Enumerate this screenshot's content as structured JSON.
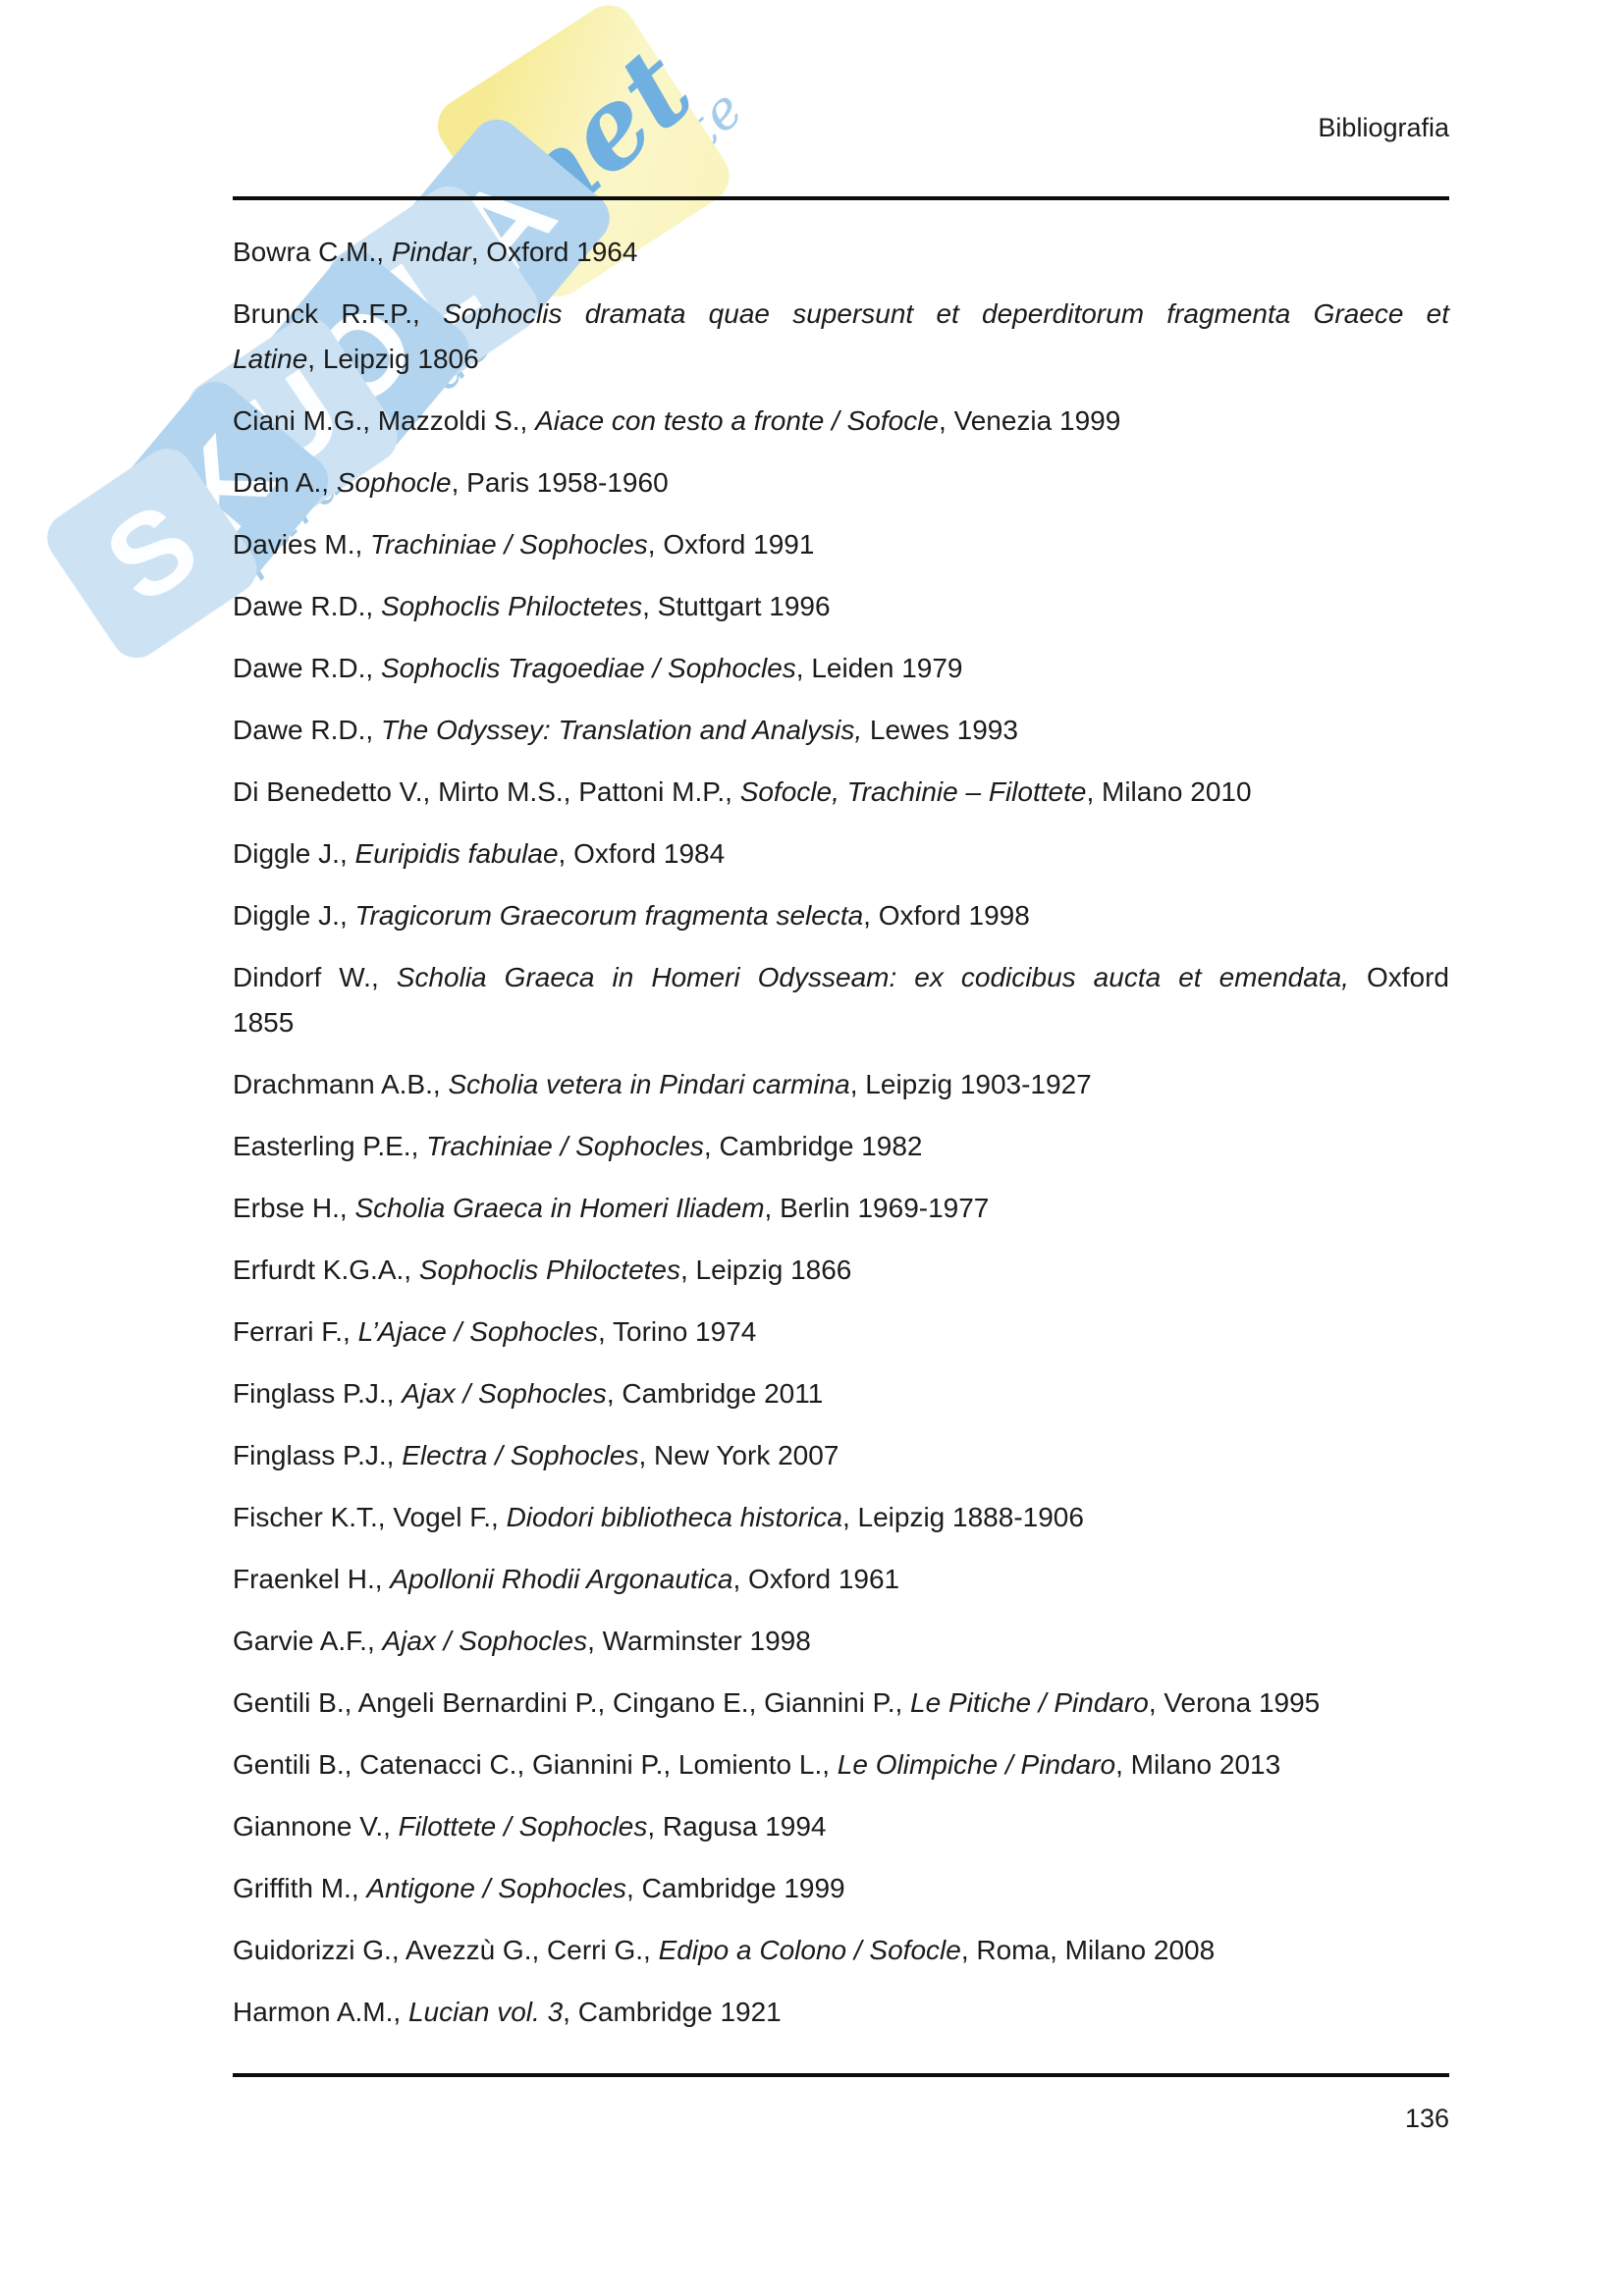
{
  "header": {
    "title": "Bibliografia"
  },
  "footer": {
    "page_number": "136"
  },
  "watermark": {
    "letters": [
      "S",
      "K",
      "U",
      "O",
      "L",
      "A"
    ],
    "suffix": ".net",
    "tagline": "il paradiso dello studente",
    "colors": {
      "tile_blue_light": "#cde2f3",
      "tile_blue": "#b3d4ee",
      "tile_yellow": "#f8f0a8",
      "script_blue": "#6fb0e0",
      "tagline_blue": "#a3cce9"
    }
  },
  "entries": [
    {
      "lines": [
        {
          "justify": false,
          "segments": [
            {
              "text": "Bowra C.M., ",
              "italic": false
            },
            {
              "text": "Pindar",
              "italic": true
            },
            {
              "text": ", Oxford 1964",
              "italic": false
            }
          ]
        }
      ]
    },
    {
      "lines": [
        {
          "justify": true,
          "segments": [
            {
              "text": "Brunck R.F.P., ",
              "italic": false
            },
            {
              "text": "Sophoclis dramata quae supersunt et deperditorum fragmenta Graece et",
              "italic": true
            }
          ]
        },
        {
          "justify": false,
          "segments": [
            {
              "text": "Latine",
              "italic": true
            },
            {
              "text": ", Leipzig 1806",
              "italic": false
            }
          ]
        }
      ]
    },
    {
      "lines": [
        {
          "justify": false,
          "segments": [
            {
              "text": "Ciani M.G., Mazzoldi S., ",
              "italic": false
            },
            {
              "text": "Aiace con testo a fronte / Sofocle",
              "italic": true
            },
            {
              "text": ", Venezia 1999",
              "italic": false
            }
          ]
        }
      ]
    },
    {
      "lines": [
        {
          "justify": false,
          "segments": [
            {
              "text": "Dain A., ",
              "italic": false
            },
            {
              "text": "Sophocle",
              "italic": true
            },
            {
              "text": ", Paris 1958-1960",
              "italic": false
            }
          ]
        }
      ]
    },
    {
      "lines": [
        {
          "justify": false,
          "segments": [
            {
              "text": "Davies M., ",
              "italic": false
            },
            {
              "text": "Trachiniae / Sophocles",
              "italic": true
            },
            {
              "text": ", Oxford 1991",
              "italic": false
            }
          ]
        }
      ]
    },
    {
      "lines": [
        {
          "justify": false,
          "segments": [
            {
              "text": "Dawe R.D., ",
              "italic": false
            },
            {
              "text": "Sophoclis Philoctetes",
              "italic": true
            },
            {
              "text": ", Stuttgart 1996",
              "italic": false
            }
          ]
        }
      ]
    },
    {
      "lines": [
        {
          "justify": false,
          "segments": [
            {
              "text": "Dawe R.D., ",
              "italic": false
            },
            {
              "text": "Sophoclis Tragoediae / Sophocles",
              "italic": true
            },
            {
              "text": ", Leiden 1979",
              "italic": false
            }
          ]
        }
      ]
    },
    {
      "lines": [
        {
          "justify": false,
          "segments": [
            {
              "text": "Dawe R.D., ",
              "italic": false
            },
            {
              "text": "The Odyssey: Translation and Analysis,",
              "italic": true
            },
            {
              "text": " Lewes 1993",
              "italic": false
            }
          ]
        }
      ]
    },
    {
      "lines": [
        {
          "justify": false,
          "segments": [
            {
              "text": "Di Benedetto V., Mirto M.S., Pattoni M.P., ",
              "italic": false
            },
            {
              "text": "Sofocle, Trachinie – Filottete",
              "italic": true
            },
            {
              "text": ", Milano 2010",
              "italic": false
            }
          ]
        }
      ]
    },
    {
      "lines": [
        {
          "justify": false,
          "segments": [
            {
              "text": "Diggle J., ",
              "italic": false
            },
            {
              "text": "Euripidis fabulae",
              "italic": true
            },
            {
              "text": ", Oxford 1984",
              "italic": false
            }
          ]
        }
      ]
    },
    {
      "lines": [
        {
          "justify": false,
          "segments": [
            {
              "text": "Diggle J., ",
              "italic": false
            },
            {
              "text": "Tragicorum Graecorum fragmenta selecta",
              "italic": true
            },
            {
              "text": ", Oxford 1998",
              "italic": false
            }
          ]
        }
      ]
    },
    {
      "lines": [
        {
          "justify": true,
          "segments": [
            {
              "text": "Dindorf W., ",
              "italic": false
            },
            {
              "text": "Scholia Graeca in Homeri Odysseam: ex codicibus aucta et emendata,",
              "italic": true
            },
            {
              "text": " Oxford",
              "italic": false
            }
          ]
        },
        {
          "justify": false,
          "segments": [
            {
              "text": "1855",
              "italic": false
            }
          ]
        }
      ]
    },
    {
      "lines": [
        {
          "justify": false,
          "segments": [
            {
              "text": "Drachmann A.B., ",
              "italic": false
            },
            {
              "text": "Scholia vetera in Pindari carmina",
              "italic": true
            },
            {
              "text": ", Leipzig 1903-1927",
              "italic": false
            }
          ]
        }
      ]
    },
    {
      "lines": [
        {
          "justify": false,
          "segments": [
            {
              "text": "Easterling P.E., ",
              "italic": false
            },
            {
              "text": "Trachiniae / Sophocles",
              "italic": true
            },
            {
              "text": ", Cambridge 1982",
              "italic": false
            }
          ]
        }
      ]
    },
    {
      "lines": [
        {
          "justify": false,
          "segments": [
            {
              "text": "Erbse H., ",
              "italic": false
            },
            {
              "text": "Scholia Graeca in Homeri Iliadem",
              "italic": true
            },
            {
              "text": ", Berlin 1969-1977",
              "italic": false
            }
          ]
        }
      ]
    },
    {
      "lines": [
        {
          "justify": false,
          "segments": [
            {
              "text": "Erfurdt K.G.A., ",
              "italic": false
            },
            {
              "text": "Sophoclis Philoctetes",
              "italic": true
            },
            {
              "text": ", Leipzig 1866",
              "italic": false
            }
          ]
        }
      ]
    },
    {
      "lines": [
        {
          "justify": false,
          "segments": [
            {
              "text": "Ferrari F., ",
              "italic": false
            },
            {
              "text": "L’Ajace / Sophocles",
              "italic": true
            },
            {
              "text": ", Torino 1974",
              "italic": false
            }
          ]
        }
      ]
    },
    {
      "lines": [
        {
          "justify": false,
          "segments": [
            {
              "text": "Finglass P.J., ",
              "italic": false
            },
            {
              "text": "Ajax / Sophocles",
              "italic": true
            },
            {
              "text": ", Cambridge 2011",
              "italic": false
            }
          ]
        }
      ]
    },
    {
      "lines": [
        {
          "justify": false,
          "segments": [
            {
              "text": "Finglass P.J., ",
              "italic": false
            },
            {
              "text": "Electra / Sophocles",
              "italic": true
            },
            {
              "text": ", New York 2007",
              "italic": false
            }
          ]
        }
      ]
    },
    {
      "lines": [
        {
          "justify": false,
          "segments": [
            {
              "text": "Fischer K.T., Vogel F., ",
              "italic": false
            },
            {
              "text": "Diodori bibliotheca historica",
              "italic": true
            },
            {
              "text": ", Leipzig 1888-1906",
              "italic": false
            }
          ]
        }
      ]
    },
    {
      "lines": [
        {
          "justify": false,
          "segments": [
            {
              "text": "Fraenkel H., ",
              "italic": false
            },
            {
              "text": "Apollonii Rhodii Argonautica",
              "italic": true
            },
            {
              "text": ", Oxford 1961",
              "italic": false
            }
          ]
        }
      ]
    },
    {
      "lines": [
        {
          "justify": false,
          "segments": [
            {
              "text": "Garvie A.F., ",
              "italic": false
            },
            {
              "text": "Ajax / Sophocles",
              "italic": true
            },
            {
              "text": ", Warminster 1998",
              "italic": false
            }
          ]
        }
      ]
    },
    {
      "lines": [
        {
          "justify": false,
          "segments": [
            {
              "text": "Gentili B., Angeli Bernardini P., Cingano E., Giannini P., ",
              "italic": false
            },
            {
              "text": "Le Pitiche / Pindaro",
              "italic": true
            },
            {
              "text": ", Verona 1995",
              "italic": false
            }
          ]
        }
      ]
    },
    {
      "lines": [
        {
          "justify": false,
          "segments": [
            {
              "text": "Gentili B., Catenacci C., Giannini P., Lomiento L., ",
              "italic": false
            },
            {
              "text": "Le Olimpiche / Pindaro",
              "italic": true
            },
            {
              "text": ", Milano 2013",
              "italic": false
            }
          ]
        }
      ]
    },
    {
      "lines": [
        {
          "justify": false,
          "segments": [
            {
              "text": "Giannone V., ",
              "italic": false
            },
            {
              "text": "Filottete / Sophocles",
              "italic": true
            },
            {
              "text": ", Ragusa 1994",
              "italic": false
            }
          ]
        }
      ]
    },
    {
      "lines": [
        {
          "justify": false,
          "segments": [
            {
              "text": "Griffith M., ",
              "italic": false
            },
            {
              "text": "Antigone / Sophocles",
              "italic": true
            },
            {
              "text": ", Cambridge 1999",
              "italic": false
            }
          ]
        }
      ]
    },
    {
      "lines": [
        {
          "justify": false,
          "segments": [
            {
              "text": "Guidorizzi G., Avezzù G., Cerri G., ",
              "italic": false
            },
            {
              "text": "Edipo a Colono / Sofocle",
              "italic": true
            },
            {
              "text": ", Roma, Milano 2008",
              "italic": false
            }
          ]
        }
      ]
    },
    {
      "lines": [
        {
          "justify": false,
          "segments": [
            {
              "text": "Harmon A.M., ",
              "italic": false
            },
            {
              "text": "Lucian vol. 3",
              "italic": true
            },
            {
              "text": ", Cambridge 1921",
              "italic": false
            }
          ]
        }
      ]
    }
  ]
}
